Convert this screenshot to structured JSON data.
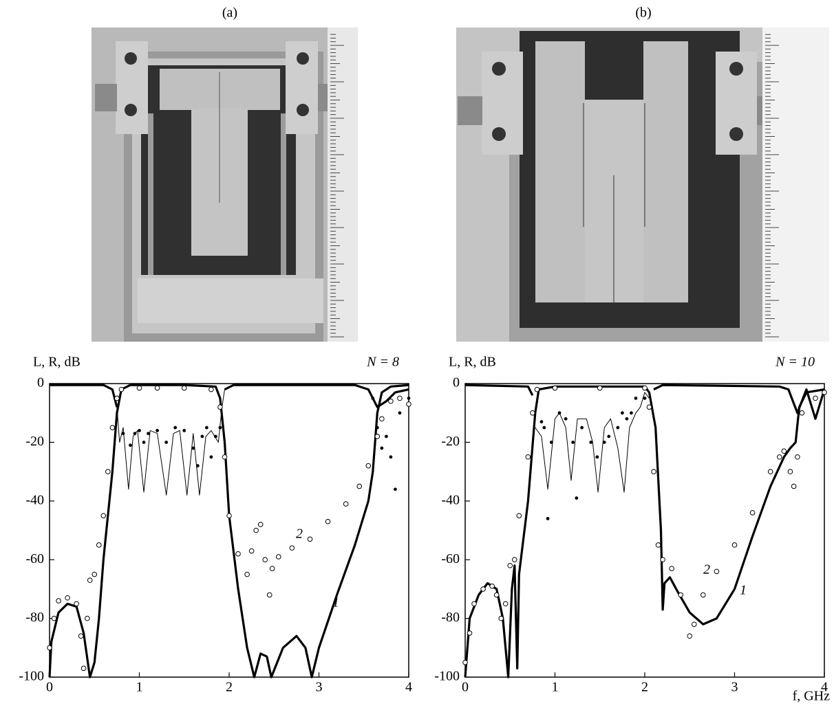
{
  "chart_data": [
    {
      "type": "line",
      "panel": "(a)",
      "y_label": "L, R, dB",
      "note": "N = 8",
      "annotations": [
        "2",
        "1"
      ],
      "xlim": [
        0,
        4
      ],
      "xticks": [
        0,
        1,
        2,
        3,
        4
      ],
      "ylim": [
        -100,
        0
      ],
      "yticks": [
        -100,
        -80,
        -60,
        -40,
        -20,
        0
      ],
      "grid": false,
      "series": [
        {
          "style": "thick",
          "color": "#000000",
          "x": [
            0,
            0.02,
            0.1,
            0.2,
            0.3,
            0.38,
            0.45,
            0.5,
            0.55,
            0.6,
            0.7,
            0.75,
            0.8,
            0.9,
            1.5,
            1.85,
            1.9,
            1.95,
            2.0,
            2.1,
            2.2,
            2.28,
            2.35,
            2.42,
            2.47,
            2.6,
            2.75,
            2.85,
            2.92,
            3.0,
            3.2,
            3.4,
            3.55,
            3.6,
            3.65,
            3.7,
            3.8,
            4.0
          ],
          "values": [
            -100,
            -88,
            -78,
            -75,
            -76,
            -85,
            -100,
            -95,
            -80,
            -60,
            -30,
            -10,
            -2,
            -0.5,
            -0.5,
            -1,
            -5,
            -20,
            -45,
            -70,
            -90,
            -100,
            -92,
            -93,
            -100,
            -90,
            -86,
            -90,
            -100,
            -90,
            -72,
            -55,
            -40,
            -30,
            -10,
            -3,
            -1,
            -0.5
          ]
        },
        {
          "style": "thick",
          "color": "#000000",
          "x": [
            0,
            0.6,
            0.7,
            0.75,
            1.3,
            1.95,
            2.05,
            3.4,
            3.55,
            3.65,
            3.75,
            3.85,
            4
          ],
          "values": [
            -0.5,
            -0.5,
            -2,
            -8,
            null,
            -2,
            -0.5,
            -0.5,
            -2,
            -8,
            -6,
            -3,
            -2
          ]
        },
        {
          "style": "thin",
          "color": "#000000",
          "x": [
            0.75,
            0.78,
            0.82,
            0.88,
            0.93,
            0.98,
            1.05,
            1.12,
            1.2,
            1.3,
            1.38,
            1.45,
            1.53,
            1.6,
            1.67,
            1.74,
            1.8,
            1.88,
            1.92,
            1.95
          ],
          "values": [
            -8,
            -20,
            -15,
            -36,
            -18,
            -16,
            -37,
            -16,
            -17,
            -38,
            -17,
            -16,
            -38,
            -17,
            -38,
            -18,
            -16,
            -20,
            -8,
            -2
          ]
        },
        {
          "style": "circles",
          "color": "#000000",
          "x": [
            0,
            0.05,
            0.1,
            0.2,
            0.3,
            0.35,
            0.38,
            0.42,
            0.45,
            0.5,
            0.55,
            0.6,
            0.65,
            0.7,
            0.75,
            0.8,
            1.0,
            1.2,
            1.5,
            1.8,
            1.9,
            1.95,
            2.0,
            2.1,
            2.2,
            2.25,
            2.3,
            2.35,
            2.4,
            2.45,
            2.48,
            2.55,
            2.7,
            2.9,
            3.1,
            3.3,
            3.45,
            3.55,
            3.65,
            3.7,
            3.8,
            3.9,
            4
          ],
          "values": [
            -90,
            -80,
            -74,
            -73,
            -75,
            -86,
            -97,
            -80,
            -67,
            -65,
            -55,
            -45,
            -30,
            -15,
            -5,
            -2,
            -1.5,
            -1.5,
            -1.5,
            -2,
            -8,
            -25,
            -45,
            -58,
            -65,
            -57,
            -50,
            -48,
            -60,
            -72,
            -63,
            -59,
            -56,
            -53,
            -47,
            -41,
            -35,
            -28,
            -18,
            -12,
            -6,
            -5,
            -7
          ]
        },
        {
          "style": "dots",
          "color": "#000000",
          "x": [
            0.82,
            0.9,
            0.95,
            1.0,
            1.05,
            1.1,
            1.2,
            1.3,
            1.4,
            1.5,
            1.6,
            1.65,
            1.7,
            1.75,
            1.8,
            1.85,
            1.9,
            3.6,
            3.65,
            3.7,
            3.75,
            3.8,
            3.85,
            3.9,
            4
          ],
          "values": [
            -17,
            -21,
            -17,
            -16,
            -20,
            -17,
            -16,
            -20,
            -15,
            -16,
            -22,
            -28,
            -18,
            -15,
            -25,
            -18,
            -15,
            -5,
            -15,
            -22,
            -18,
            -25,
            -36,
            -10,
            -5
          ]
        }
      ]
    },
    {
      "type": "line",
      "panel": "(b)",
      "y_label": "L, R, dB",
      "note": "N = 10",
      "x_label": "f, GHz",
      "annotations": [
        "2",
        "1"
      ],
      "xlim": [
        0,
        4
      ],
      "xticks": [
        0,
        1,
        2,
        3,
        4
      ],
      "ylim": [
        -100,
        0
      ],
      "yticks": [
        -100,
        -80,
        -60,
        -40,
        -20,
        0
      ],
      "grid": false,
      "series": [
        {
          "style": "thick",
          "color": "#000000",
          "x": [
            0,
            0.05,
            0.15,
            0.25,
            0.35,
            0.42,
            0.48,
            0.52,
            0.55,
            0.58,
            0.6,
            0.7,
            0.78,
            0.82,
            1,
            2,
            2.05,
            2.12,
            2.18,
            2.2,
            2.22,
            2.28,
            2.35,
            2.5,
            2.65,
            2.8,
            3,
            3.2,
            3.4,
            3.55,
            3.62,
            3.68,
            3.72,
            3.8,
            4
          ],
          "values": [
            -100,
            -80,
            -72,
            -68,
            -70,
            -80,
            -100,
            -70,
            -62,
            -97,
            -65,
            -40,
            -10,
            -2,
            -1,
            -1,
            -3,
            -15,
            -50,
            -77,
            -68,
            -66,
            -70,
            -78,
            -82,
            -80,
            -70,
            -52,
            -35,
            -25,
            -22,
            -20,
            -8,
            -3,
            -2
          ]
        },
        {
          "style": "thick",
          "color": "#000000",
          "x": [
            0,
            0.7,
            0.75,
            1.4,
            2.1,
            2.2,
            3.5,
            3.6,
            3.7,
            3.8,
            3.9,
            4
          ],
          "values": [
            -0.5,
            -1,
            -4,
            null,
            -2,
            -0.5,
            -1,
            -2,
            -10,
            -2,
            -12,
            -2
          ]
        },
        {
          "style": "thin",
          "color": "#000000",
          "x": [
            0.78,
            0.85,
            0.92,
            1.0,
            1.05,
            1.12,
            1.18,
            1.25,
            1.35,
            1.42,
            1.48,
            1.55,
            1.62,
            1.7,
            1.77,
            1.83,
            1.9,
            1.95,
            2.0,
            2.05
          ],
          "values": [
            -15,
            -18,
            -36,
            -12,
            -10,
            -15,
            -33,
            -12,
            -12,
            -20,
            -37,
            -15,
            -12,
            -22,
            -37,
            -15,
            -10,
            -8,
            -3,
            -5
          ]
        },
        {
          "style": "circles",
          "color": "#000000",
          "x": [
            0,
            0.05,
            0.1,
            0.2,
            0.3,
            0.35,
            0.4,
            0.45,
            0.5,
            0.55,
            0.6,
            0.7,
            0.75,
            0.8,
            1.0,
            1.5,
            2.0,
            2.05,
            2.1,
            2.15,
            2.2,
            2.3,
            2.4,
            2.5,
            2.55,
            2.65,
            2.8,
            3.0,
            3.2,
            3.4,
            3.5,
            3.55,
            3.62,
            3.66,
            3.7,
            3.75,
            3.9,
            4
          ],
          "values": [
            -95,
            -85,
            -75,
            -70,
            -69,
            -72,
            -80,
            -75,
            -62,
            -60,
            -45,
            -25,
            -10,
            -2,
            -1.5,
            -1.5,
            -1.5,
            -8,
            -30,
            -55,
            -60,
            -63,
            -72,
            -86,
            -82,
            -72,
            -64,
            -55,
            -44,
            -30,
            -25,
            -23,
            -30,
            -35,
            -25,
            -10,
            -5,
            -3
          ]
        },
        {
          "style": "dots",
          "color": "#000000",
          "x": [
            0.85,
            0.88,
            0.92,
            0.96,
            1.05,
            1.12,
            1.2,
            1.24,
            1.3,
            1.4,
            1.47,
            1.55,
            1.6,
            1.7,
            1.75,
            1.8,
            1.85,
            1.9,
            2.0
          ],
          "values": [
            -13,
            -15,
            -46,
            -20,
            -10,
            -12,
            -20,
            -39,
            -15,
            -20,
            -25,
            -20,
            -18,
            -15,
            -10,
            -12,
            -10,
            -5,
            -5
          ]
        }
      ]
    }
  ]
}
